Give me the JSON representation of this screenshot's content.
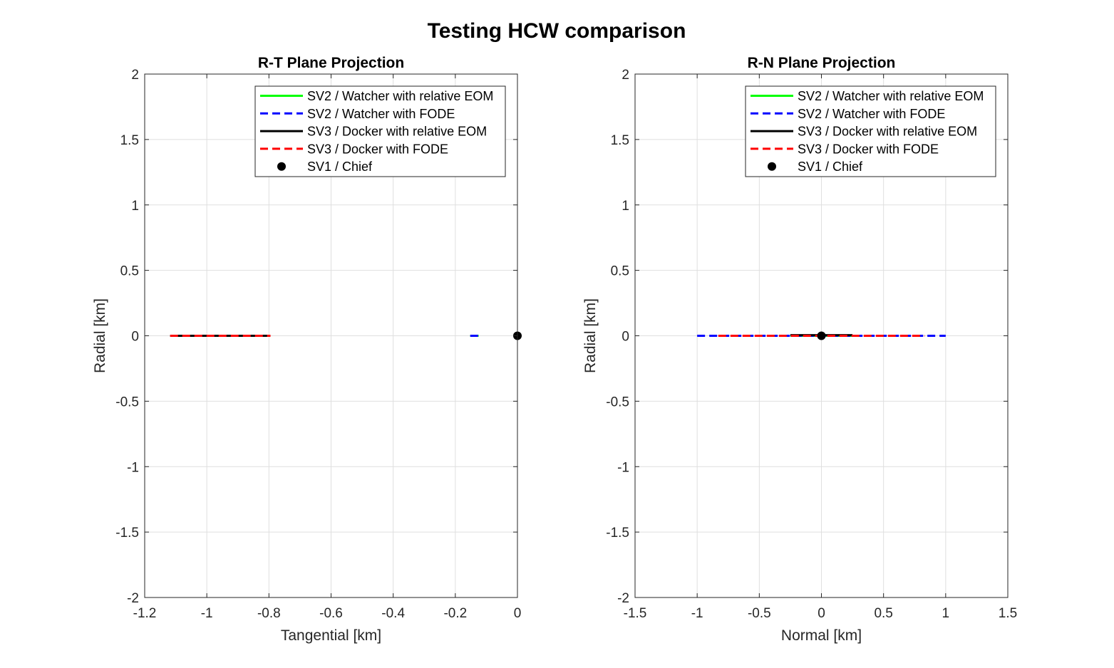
{
  "title": "Testing HCW comparison",
  "chart_data": [
    {
      "type": "line",
      "title": "R-T Plane Projection",
      "xlabel": "Tangential [km]",
      "ylabel": "Radial [km]",
      "xlim": [
        -1.2,
        0
      ],
      "ylim": [
        -2,
        2
      ],
      "xticks": [
        -1.2,
        -1,
        -0.8,
        -0.6,
        -0.4,
        -0.2,
        0
      ],
      "xtick_labels": [
        "-1.2",
        "-1",
        "-0.8",
        "-0.6",
        "-0.4",
        "-0.2",
        "0"
      ],
      "yticks": [
        -2,
        -1.5,
        -1,
        -0.5,
        0,
        0.5,
        1,
        1.5,
        2
      ],
      "ytick_labels": [
        "-2",
        "-1.5",
        "-1",
        "-0.5",
        "0",
        "0.5",
        "1",
        "1.5",
        "2"
      ],
      "grid": true,
      "legend_position": "top-right",
      "series": [
        {
          "name": "SV2 / Watcher with relative EOM",
          "color": "#00ff00",
          "style": "solid",
          "x": [
            -0.152,
            -0.125
          ],
          "y": [
            0,
            0
          ]
        },
        {
          "name": "SV2 / Watcher with FODE",
          "color": "#0000ff",
          "style": "dashed",
          "x": [
            -0.152,
            -0.125
          ],
          "y": [
            0,
            0
          ]
        },
        {
          "name": "SV3 / Docker with relative EOM",
          "color": "#000000",
          "style": "solid",
          "x": [
            -1.118,
            -0.8
          ],
          "y": [
            0,
            0
          ]
        },
        {
          "name": "SV3 / Docker with FODE",
          "color": "#ff0000",
          "style": "dashed",
          "x": [
            -1.118,
            -0.795
          ],
          "y": [
            0,
            0
          ]
        },
        {
          "name": "SV1 / Chief",
          "color": "#000000",
          "style": "marker",
          "x": [
            0
          ],
          "y": [
            0
          ]
        }
      ]
    },
    {
      "type": "line",
      "title": "R-N Plane Projection",
      "xlabel": "Normal [km]",
      "ylabel": "Radial [km]",
      "xlim": [
        -1.5,
        1.5
      ],
      "ylim": [
        -2,
        2
      ],
      "xticks": [
        -1.5,
        -1,
        -0.5,
        0,
        0.5,
        1,
        1.5
      ],
      "xtick_labels": [
        "-1.5",
        "-1",
        "-0.5",
        "0",
        "0.5",
        "1",
        "1.5"
      ],
      "yticks": [
        -2,
        -1.5,
        -1,
        -0.5,
        0,
        0.5,
        1,
        1.5,
        2
      ],
      "ytick_labels": [
        "-2",
        "-1.5",
        "-1",
        "-0.5",
        "0",
        "0.5",
        "1",
        "1.5",
        "2"
      ],
      "grid": true,
      "legend_position": "top-right",
      "series": [
        {
          "name": "SV2 / Watcher with relative EOM",
          "color": "#00ff00",
          "style": "solid",
          "x": [
            -0.25,
            0.25
          ],
          "y": [
            0,
            0
          ]
        },
        {
          "name": "SV2 / Watcher with FODE",
          "color": "#0000ff",
          "style": "dashed",
          "x": [
            -1,
            1
          ],
          "y": [
            0,
            0
          ]
        },
        {
          "name": "SV3 / Docker with relative EOM",
          "color": "#000000",
          "style": "solid",
          "x": [
            -0.25,
            0.25
          ],
          "y": [
            0.005,
            0.005
          ]
        },
        {
          "name": "SV3 / Docker with FODE",
          "color": "#ff0000",
          "style": "dashed",
          "x": [
            -0.83,
            0.83
          ],
          "y": [
            0,
            0
          ]
        },
        {
          "name": "SV1 / Chief",
          "color": "#000000",
          "style": "marker",
          "x": [
            0
          ],
          "y": [
            0
          ]
        }
      ]
    }
  ]
}
